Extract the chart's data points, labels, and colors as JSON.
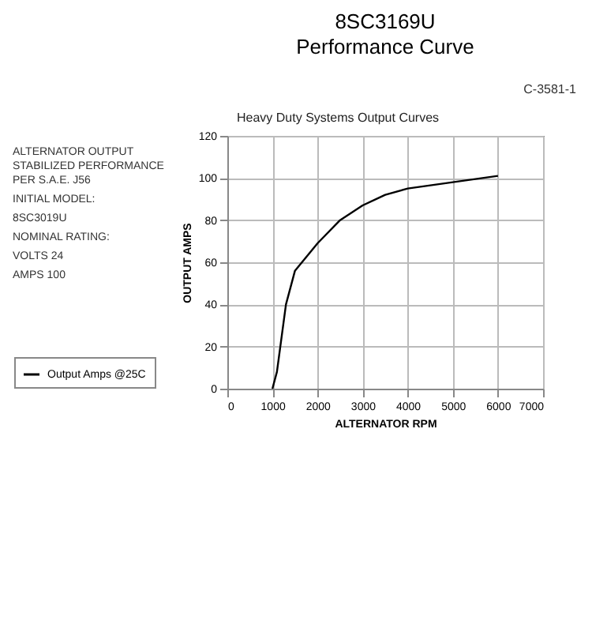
{
  "chart_data": {
    "type": "line",
    "title": "8SC3169U",
    "subtitle": "Performance Curve",
    "xlabel": "ALTERNATOR RPM",
    "ylabel": "OUTPUT AMPS",
    "annotations": [
      "Heavy Duty Systems Output Curves",
      "ALTERNATOR OUTPUT STABILIZED PERFORMANCE PER S.A.E. J56",
      "INITIAL MODEL:",
      "8SC3019U",
      "NOMINAL RATING:",
      "VOLTS 24",
      "AMPS 100",
      "C-3581-1"
    ],
    "x": [
      1000,
      1100,
      1300,
      1500,
      2000,
      2500,
      3000,
      3500,
      4000,
      5000,
      6000
    ],
    "series": [
      {
        "name": "Output Amps @25C",
        "color": "#000000",
        "values": [
          0,
          8,
          40,
          56,
          69,
          80,
          87,
          92,
          95,
          98,
          101
        ]
      }
    ],
    "xlim": [
      0,
      7000
    ],
    "xticks": [
      0,
      1000,
      2000,
      3000,
      4000,
      5000,
      6000,
      7000
    ],
    "ylim": [
      0,
      120
    ],
    "yticks": [
      0,
      20,
      40,
      60,
      80,
      100,
      120
    ],
    "grid": true,
    "legend": "bottom left",
    "marker": "none",
    "line_style": "solid"
  }
}
